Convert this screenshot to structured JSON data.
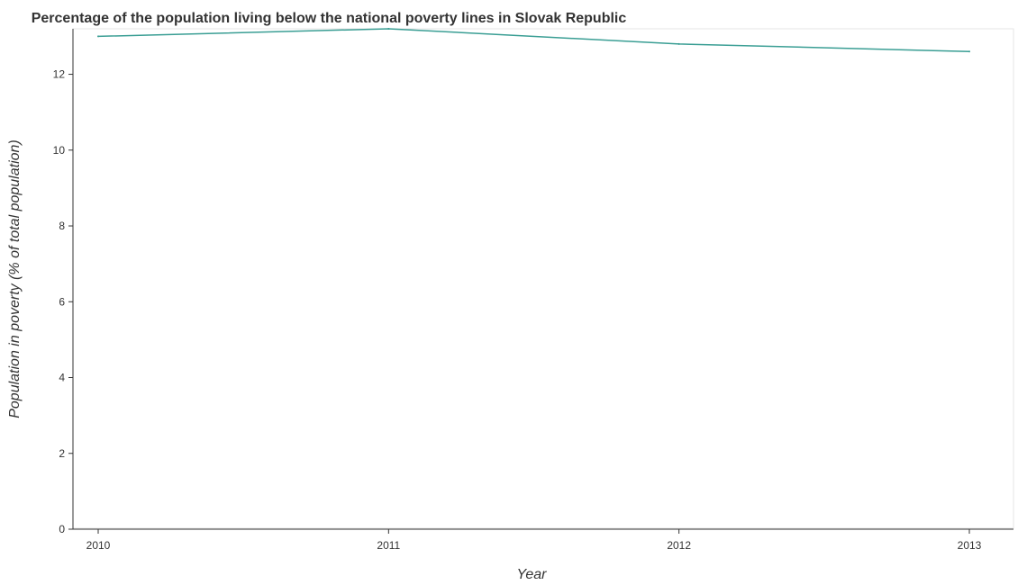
{
  "chart_data": {
    "type": "line",
    "title": "Percentage of the population living below the national poverty lines in Slovak Republic",
    "xlabel": "Year",
    "ylabel": "Population in poverty (% of total population)",
    "categories": [
      "2010",
      "2011",
      "2012",
      "2013"
    ],
    "series": [
      {
        "values": [
          13.0,
          13.2,
          12.8,
          12.6
        ],
        "color": "#3a9e94"
      }
    ],
    "yticks": [
      "0",
      "2",
      "4",
      "6",
      "8",
      "10",
      "12"
    ],
    "ylim": [
      0,
      13.2
    ],
    "grid": false,
    "legend": "none"
  }
}
